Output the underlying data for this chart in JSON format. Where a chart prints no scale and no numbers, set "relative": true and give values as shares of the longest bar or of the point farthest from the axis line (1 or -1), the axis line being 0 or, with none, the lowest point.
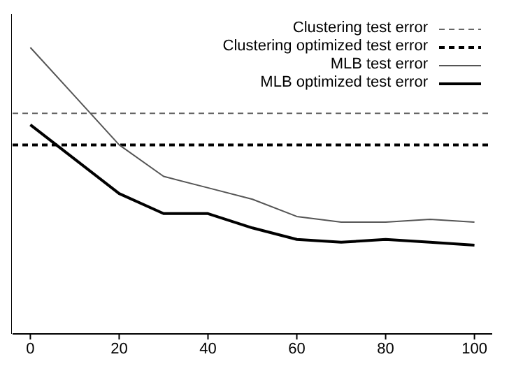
{
  "chart_data": {
    "type": "line",
    "relative": true,
    "x": [
      0,
      10,
      20,
      30,
      40,
      50,
      60,
      70,
      80,
      90,
      100
    ],
    "xlim": [
      -4,
      104
    ],
    "xticks": [
      0,
      20,
      40,
      60,
      80,
      100
    ],
    "legend": "top right",
    "grid": false,
    "marker": "none",
    "ref_lines": [
      {
        "axis": "y",
        "value": 0.77,
        "label": "Clustering test error",
        "color": "#666666",
        "line_style": "dashed"
      },
      {
        "axis": "y",
        "value": 0.66,
        "label": "Clustering optimized test error",
        "color": "#000000",
        "line_style": "dashed"
      }
    ],
    "series": [
      {
        "name": "MLB test error",
        "color": "#555555",
        "line_style": "solid",
        "values": [
          1,
          0.83,
          0.66,
          0.55,
          0.51,
          0.47,
          0.41,
          0.39,
          0.39,
          0.4,
          0.39
        ]
      },
      {
        "name": "MLB optimized test error",
        "color": "#000000",
        "line_style": "solid",
        "values": [
          0.73,
          0.61,
          0.49,
          0.42,
          0.42,
          0.37,
          0.33,
          0.32,
          0.33,
          0.32,
          0.31
        ]
      }
    ]
  }
}
